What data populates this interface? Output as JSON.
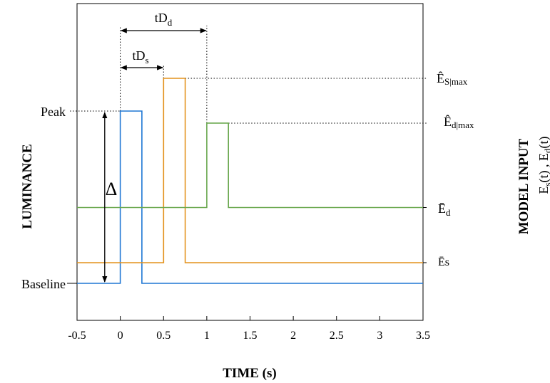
{
  "chart_data": {
    "type": "line",
    "xlabel": "TIME (s)",
    "ylabel": "LUMINANCE",
    "ylabel_right": "MODEL INPUT",
    "ylabel_right_sub": "E_s(t) , E_d(t)",
    "xlim": [
      -0.5,
      3.5
    ],
    "xticks": [
      -0.5,
      0,
      0.5,
      1,
      1.5,
      2,
      2.5,
      3,
      3.5
    ],
    "xtick_labels": [
      "-0.5",
      "0",
      "0.5",
      "1",
      "1.5",
      "2",
      "2.5",
      "3",
      "3.5"
    ],
    "ylim": [
      -0.4,
      1.45
    ],
    "grid": false,
    "colors": {
      "luminance": "#1f77d4",
      "s": "#e3921c",
      "d": "#6aa84f"
    },
    "series": [
      {
        "key": "luminance",
        "color": "#1f77d4",
        "x": [
          -0.5,
          0,
          0,
          0.25,
          0.25,
          3.5
        ],
        "y": [
          0,
          0,
          1,
          1,
          0,
          0
        ]
      },
      {
        "key": "s",
        "color": "#e3921c",
        "x": [
          -0.5,
          0.5,
          0.5,
          0.75,
          0.75,
          3.5
        ],
        "y": [
          0.12,
          0.12,
          1.19,
          1.19,
          0.12,
          0.12
        ]
      },
      {
        "key": "d",
        "color": "#6aa84f",
        "x": [
          -0.5,
          1,
          1,
          1.25,
          1.25,
          3.5
        ],
        "y": [
          0.44,
          0.44,
          0.93,
          0.93,
          0.44,
          0.44
        ]
      }
    ],
    "annotations": {
      "peak": "Peak",
      "baseline": "Baseline",
      "delta": "Δ",
      "tDd": {
        "main": "tD",
        "sub": "d"
      },
      "tDs": {
        "main": "tD",
        "sub": "s"
      },
      "Es_max": {
        "main": "Ê",
        "sub1": "S",
        "sub2": "|max"
      },
      "Ed_max": {
        "main": "Ê",
        "sub1": "d",
        "sub2": "|max"
      },
      "Ed_bar": {
        "main": "Ē",
        "sub": "d"
      },
      "Es_bar": "Ēs",
      "right_sub": {
        "e1": "E",
        "s1": "s",
        "t1": "(t) , ",
        "e2": "E",
        "s2": "d",
        "t2": "(t)"
      }
    }
  }
}
